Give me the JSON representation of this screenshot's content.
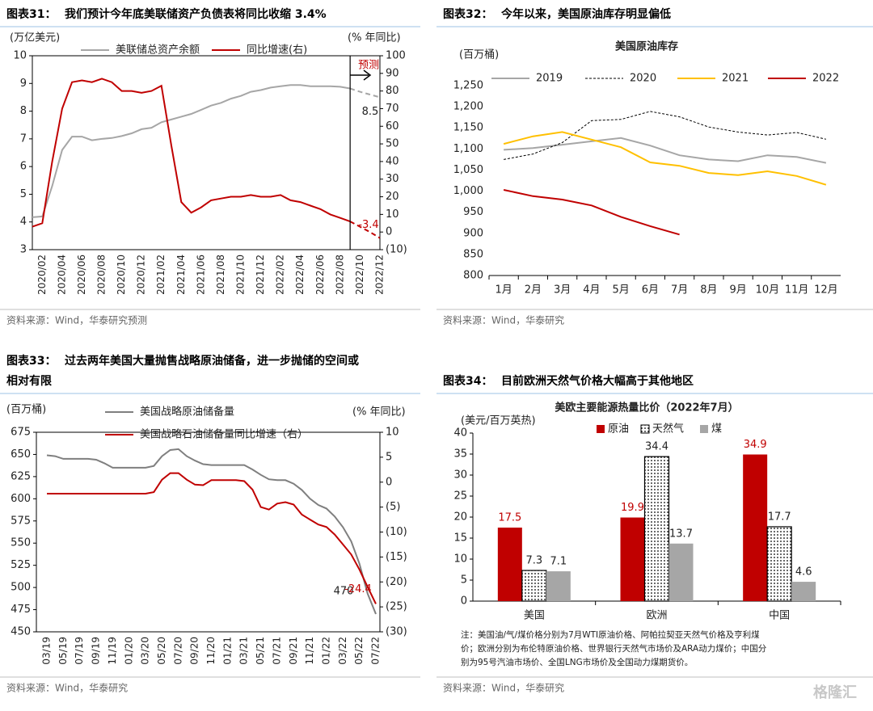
{
  "watermark": "格隆汇",
  "chart_data": [
    {
      "type": "line",
      "label": "图表31：",
      "title": "我们预计今年底美联储资产负债表将同比收缩 3.4%",
      "source": "资料来源：Wind，华泰研究预测",
      "ylabel": "(万亿美元)",
      "y2label": "(% 年同比)",
      "annotation": "预测",
      "categories": [
        null,
        "2020/02",
        null,
        "2020/04",
        null,
        "2020/06",
        null,
        "2020/08",
        null,
        "2020/10",
        null,
        "2020/12",
        null,
        "2021/02",
        null,
        "2021/04",
        null,
        "2021/06",
        null,
        "2021/08",
        null,
        "2021/10",
        null,
        "2021/12",
        null,
        "2022/02",
        null,
        "2022/04",
        null,
        "2022/06",
        null,
        "2022/08",
        null,
        "2022/10",
        null,
        "2022/12"
      ],
      "series": [
        {
          "name": "美联储总资产余额",
          "color": "#a6a6a6",
          "values": [
            4.17,
            4.2,
            5.3,
            6.6,
            7.08,
            7.08,
            6.95,
            7.0,
            7.03,
            7.1,
            7.2,
            7.35,
            7.4,
            7.6,
            7.7,
            7.8,
            7.9,
            8.05,
            8.2,
            8.3,
            8.45,
            8.55,
            8.7,
            8.76,
            8.85,
            8.9,
            8.94,
            8.94,
            8.9,
            8.9,
            8.9,
            8.88,
            8.82,
            null,
            null,
            null
          ],
          "forecast": [
            null,
            null,
            null,
            null,
            null,
            null,
            null,
            null,
            null,
            null,
            null,
            null,
            null,
            null,
            null,
            null,
            null,
            null,
            null,
            null,
            null,
            null,
            null,
            null,
            null,
            null,
            null,
            null,
            null,
            null,
            null,
            null,
            8.82,
            8.7,
            8.6,
            8.5
          ]
        },
        {
          "name": "同比增速(右)",
          "color": "#c00000",
          "axis": "y2",
          "values": [
            3,
            5,
            40,
            70,
            85,
            86,
            85,
            87,
            85,
            80,
            80,
            79,
            80,
            83,
            49,
            17,
            11,
            14,
            18,
            19,
            20,
            20,
            21,
            20,
            20,
            21,
            18,
            17,
            15,
            13,
            10,
            8,
            6,
            null,
            null,
            null
          ],
          "forecast": [
            null,
            null,
            null,
            null,
            null,
            null,
            null,
            null,
            null,
            null,
            null,
            null,
            null,
            null,
            null,
            null,
            null,
            null,
            null,
            null,
            null,
            null,
            null,
            null,
            null,
            null,
            null,
            null,
            null,
            null,
            null,
            null,
            6,
            3,
            0,
            -3.4
          ]
        }
      ],
      "ylim": [
        3,
        10
      ],
      "yticks": [
        3,
        4,
        5,
        6,
        7,
        8,
        9,
        10
      ],
      "y2lim": [
        -10,
        100
      ],
      "y2ticks": [
        {
          "value": -10,
          "label": "(10)"
        },
        0,
        10,
        20,
        30,
        40,
        50,
        60,
        70,
        80,
        90,
        100
      ]
    },
    {
      "type": "line",
      "label": "图表32：",
      "title": "今年以来，美国原油库存明显偏低",
      "subtitle": "美国原油库存",
      "source": "资料来源：Wind，华泰研究",
      "ylabel": "(百万桶)",
      "categories": [
        "1月",
        "2月",
        "3月",
        "4月",
        "5月",
        "6月",
        "7月",
        "8月",
        "9月",
        "10月",
        "11月",
        "12月"
      ],
      "series": [
        {
          "name": "2019",
          "color": "#a6a6a6",
          "values": [
            1098,
            1102,
            1110,
            1118,
            1126,
            1108,
            1085,
            1075,
            1071,
            1085,
            1081,
            1067
          ]
        },
        {
          "name": "2020",
          "color": "#000000",
          "dash": true,
          "values": [
            1075,
            1088,
            1115,
            1167,
            1170,
            1189,
            1176,
            1152,
            1140,
            1133,
            1139,
            1123
          ]
        },
        {
          "name": "2021",
          "color": "#ffc000",
          "values": [
            1112,
            1130,
            1140,
            1122,
            1104,
            1068,
            1060,
            1043,
            1038,
            1047,
            1036,
            1015
          ]
        },
        {
          "name": "2022",
          "color": "#c00000",
          "values": [
            1003,
            988,
            980,
            966,
            939,
            917,
            897,
            null,
            null,
            null,
            null,
            null
          ]
        }
      ],
      "ylim": [
        800,
        1250
      ],
      "yticks": [
        800,
        850,
        900,
        950,
        {
          "value": 1000,
          "label": "1,000"
        },
        {
          "value": 1050,
          "label": "1,050"
        },
        {
          "value": 1100,
          "label": "1,100"
        },
        {
          "value": 1150,
          "label": "1,150"
        },
        {
          "value": 1200,
          "label": "1,200"
        },
        {
          "value": 1250,
          "label": "1,250"
        }
      ]
    },
    {
      "type": "line",
      "label": "图表33：",
      "title": [
        "过去两年美国大量抛售战略原油储备，进一步抛储的空间或",
        "相对有限"
      ],
      "source": "资料来源：Wind，华泰研究",
      "ylabel": "(百万桶)",
      "y2label": "(% 年同比)",
      "categories": [
        "03/19",
        null,
        "05/19",
        null,
        "07/19",
        null,
        "09/19",
        null,
        "11/19",
        null,
        "01/20",
        null,
        "03/20",
        null,
        "05/20",
        null,
        "07/20",
        null,
        "09/20",
        null,
        "11/20",
        null,
        "01/21",
        null,
        "03/21",
        null,
        "05/21",
        null,
        "07/21",
        null,
        "09/21",
        null,
        "11/21",
        null,
        "01/22",
        null,
        "03/22",
        null,
        "05/22",
        null,
        "07/22"
      ],
      "series": [
        {
          "name": "美国战略原油储备量",
          "color": "#7f7f7f",
          "values": [
            649,
            648,
            645,
            645,
            645,
            645,
            644,
            640,
            635,
            635,
            635,
            635,
            635,
            637,
            648,
            655,
            656,
            648,
            643,
            639,
            638,
            638,
            638,
            638,
            638,
            633,
            627,
            622,
            621,
            621,
            617,
            610,
            600,
            593,
            589,
            580,
            568,
            552,
            527,
            493,
            470
          ]
        },
        {
          "name": "美国战略石油储备量同比增速（右）",
          "color": "#c00000",
          "axis": "y2",
          "values": [
            -2.3,
            -2.3,
            -2.3,
            -2.3,
            -2.3,
            -2.3,
            -2.3,
            -2.3,
            -2.3,
            -2.3,
            -2.3,
            -2.3,
            -2.3,
            -2.0,
            0.5,
            1.8,
            1.8,
            0.5,
            -0.5,
            -0.6,
            0.4,
            0.4,
            0.4,
            0.4,
            0.2,
            -1.5,
            -5,
            -5.5,
            -4.3,
            -4,
            -4.5,
            -6.5,
            -7.5,
            -8.5,
            -9,
            -10.5,
            -12.5,
            -14.5,
            -17.5,
            -21,
            -24.4
          ]
        }
      ],
      "ylim": [
        450,
        675
      ],
      "yticks": [
        450,
        475,
        500,
        525,
        550,
        575,
        600,
        625,
        650,
        675
      ],
      "y2lim": [
        -30,
        10
      ],
      "y2ticks": [
        {
          "value": -30,
          "label": "(30)"
        },
        {
          "value": -25,
          "label": "(25)"
        },
        {
          "value": -20,
          "label": "(20)"
        },
        {
          "value": -15,
          "label": "(15)"
        },
        {
          "value": -10,
          "label": "(10)"
        },
        {
          "value": -5,
          "label": "(5)"
        },
        0,
        5,
        10
      ]
    },
    {
      "type": "bar",
      "label": "图表34：",
      "title": "目前欧洲天然气价格大幅高于其他地区",
      "subtitle": "美欧主要能源热量比价（2022年7月）",
      "source": "资料来源：Wind，华泰研究",
      "ylabel": "(美元/百万英热)",
      "categories": [
        "美国",
        "欧洲",
        "中国"
      ],
      "series": [
        {
          "name": "原油",
          "color": "#c00000",
          "values": [
            17.5,
            19.9,
            34.9
          ]
        },
        {
          "name": "天然气",
          "color": "#000000",
          "pattern": "dots",
          "values": [
            7.3,
            34.4,
            17.7
          ]
        },
        {
          "name": "煤",
          "color": "#a6a6a6",
          "values": [
            7.1,
            13.7,
            4.6
          ]
        }
      ],
      "ylim": [
        0,
        40
      ],
      "yticks": [
        0,
        5,
        10,
        15,
        20,
        25,
        30,
        35,
        40
      ],
      "note": [
        "注：美国油/气/煤价格分别为7月WTI原油价格、阿帕拉契亚天然气价格及亨利煤",
        "价；欧洲分别为布伦特原油价格、世界银行天然气市场价及ARA动力煤价；中国分",
        "别为95号汽油市场价、全国LNG市场价及全国动力煤期货价。"
      ]
    }
  ]
}
